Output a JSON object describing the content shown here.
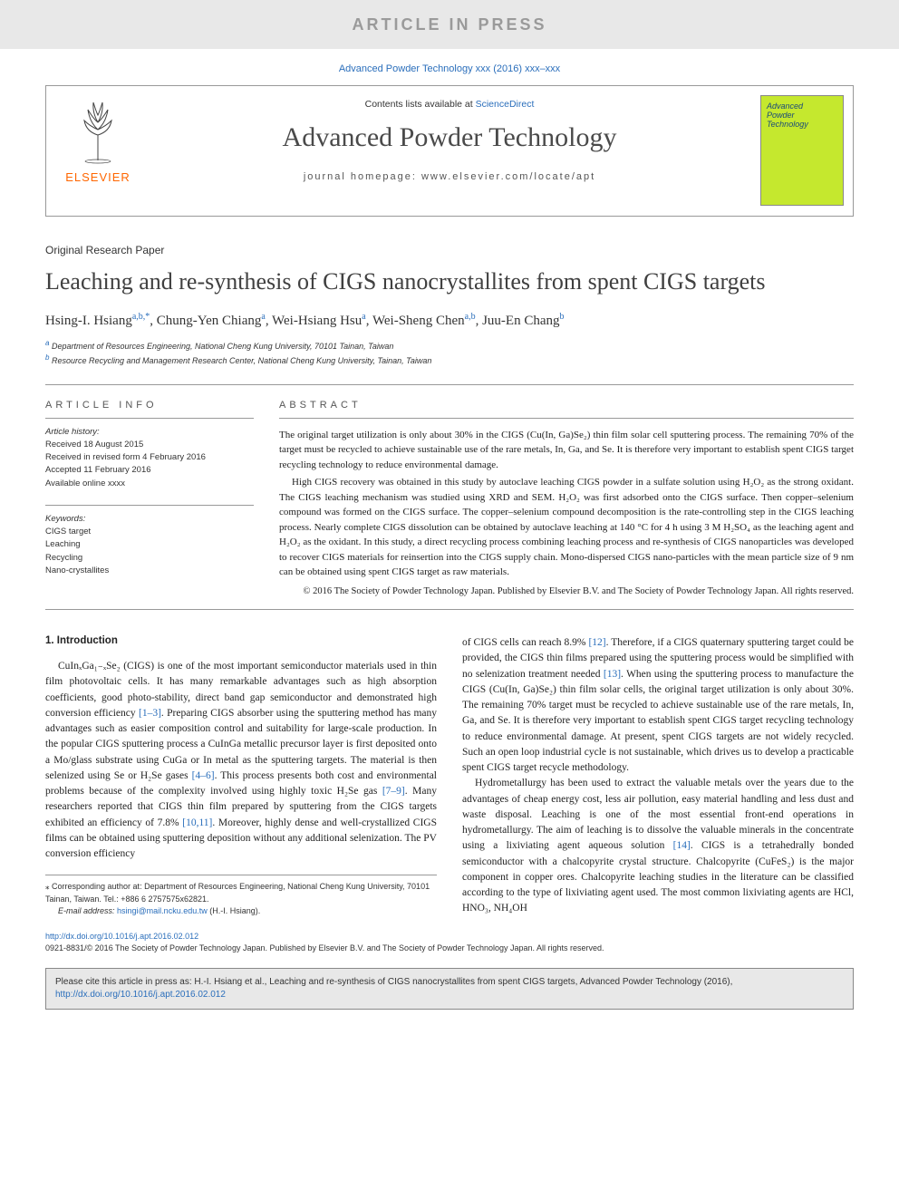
{
  "colors": {
    "press_banner_bg": "#e8e8e8",
    "press_banner_fg": "#9a9a9a",
    "link": "#2a6ebb",
    "elsevier_orange": "#ff6600",
    "cover_bg": "#c5e82e",
    "text": "#222222",
    "rule": "#999999"
  },
  "press_banner": "ARTICLE IN PRESS",
  "journal_ref": "Advanced Powder Technology xxx (2016) xxx–xxx",
  "contents_prefix": "Contents lists available at ",
  "contents_link": "ScienceDirect",
  "journal_title": "Advanced Powder Technology",
  "homepage_label": "journal homepage: www.elsevier.com/locate/apt",
  "elsevier": "ELSEVIER",
  "cover_lines": [
    "Advanced",
    "Powder",
    "Technology"
  ],
  "paper_type": "Original Research Paper",
  "title": "Leaching and re-synthesis of CIGS nanocrystallites from spent CIGS targets",
  "authors": [
    {
      "name": "Hsing-I. Hsiang",
      "aff": "a,b,",
      "star": true
    },
    {
      "name": "Chung-Yen Chiang",
      "aff": "a"
    },
    {
      "name": "Wei-Hsiang Hsu",
      "aff": "a"
    },
    {
      "name": "Wei-Sheng Chen",
      "aff": "a,b"
    },
    {
      "name": "Juu-En Chang",
      "aff": "b"
    }
  ],
  "affiliations": [
    {
      "tag": "a",
      "text": "Department of Resources Engineering, National Cheng Kung University, 70101 Tainan, Taiwan"
    },
    {
      "tag": "b",
      "text": "Resource Recycling and Management Research Center, National Cheng Kung University, Tainan, Taiwan"
    }
  ],
  "article_info_head": "ARTICLE INFO",
  "history_label": "Article history:",
  "history": [
    "Received 18 August 2015",
    "Received in revised form 4 February 2016",
    "Accepted 11 February 2016",
    "Available online xxxx"
  ],
  "keywords_label": "Keywords:",
  "keywords": [
    "CIGS target",
    "Leaching",
    "Recycling",
    "Nano-crystallites"
  ],
  "abstract_head": "ABSTRACT",
  "abstract": [
    "The original target utilization is only about 30% in the CIGS (Cu(In, Ga)Se₂) thin film solar cell sputtering process. The remaining 70% of the target must be recycled to achieve sustainable use of the rare metals, In, Ga, and Se. It is therefore very important to establish spent CIGS target recycling technology to reduce environmental damage.",
    "High CIGS recovery was obtained in this study by autoclave leaching CIGS powder in a sulfate solution using H₂O₂ as the strong oxidant. The CIGS leaching mechanism was studied using XRD and SEM. H₂O₂ was first adsorbed onto the CIGS surface. Then copper–selenium compound was formed on the CIGS surface. The copper–selenium compound decomposition is the rate-controlling step in the CIGS leaching process. Nearly complete CIGS dissolution can be obtained by autoclave leaching at 140 °C for 4 h using 3 M H₂SO₄ as the leaching agent and H₂O₂ as the oxidant. In this study, a direct recycling process combining leaching process and re-synthesis of CIGS nanoparticles was developed to recover CIGS materials for reinsertion into the CIGS supply chain. Mono-dispersed CIGS nano-particles with the mean particle size of 9 nm can be obtained using spent CIGS target as raw materials."
  ],
  "copyright": "© 2016 The Society of Powder Technology Japan. Published by Elsevier B.V. and The Society of Powder Technology Japan. All rights reserved.",
  "intro_head": "1. Introduction",
  "body_left": "CuInₓGa₁₋ₓSe₂ (CIGS) is one of the most important semiconductor materials used in thin film photovoltaic cells. It has many remarkable advantages such as high absorption coefficients, good photo-stability, direct band gap semiconductor and demonstrated high conversion efficiency [1–3]. Preparing CIGS absorber using the sputtering method has many advantages such as easier composition control and suitability for large-scale production. In the popular CIGS sputtering process a CuInGa metallic precursor layer is first deposited onto a Mo/glass substrate using CuGa or In metal as the sputtering targets. The material is then selenized using Se or H₂Se gases [4–6]. This process presents both cost and environmental problems because of the complexity involved using highly toxic H₂Se gas [7–9]. Many researchers reported that CIGS thin film prepared by sputtering from the CIGS targets exhibited an efficiency of 7.8% [10,11]. Moreover, highly dense and well-crystallized CIGS films can be obtained using sputtering deposition without any additional selenization. The PV conversion efficiency",
  "body_right_p1": "of CIGS cells can reach 8.9% [12]. Therefore, if a CIGS quaternary sputtering target could be provided, the CIGS thin films prepared using the sputtering process would be simplified with no selenization treatment needed [13]. When using the sputtering process to manufacture the CIGS (Cu(In, Ga)Se₂) thin film solar cells, the original target utilization is only about 30%. The remaining 70% target must be recycled to achieve sustainable use of the rare metals, In, Ga, and Se. It is therefore very important to establish spent CIGS target recycling technology to reduce environmental damage. At present, spent CIGS targets are not widely recycled. Such an open loop industrial cycle is not sustainable, which drives us to develop a practicable spent CIGS target recycle methodology.",
  "body_right_p2": "Hydrometallurgy has been used to extract the valuable metals over the years due to the advantages of cheap energy cost, less air pollution, easy material handling and less dust and waste disposal. Leaching is one of the most essential front-end operations in hydrometallurgy. The aim of leaching is to dissolve the valuable minerals in the concentrate using a lixiviating agent aqueous solution [14]. CIGS is a tetrahedrally bonded semiconductor with a chalcopyrite crystal structure. Chalcopyrite (CuFeS₂) is the major component in copper ores. Chalcopyrite leaching studies in the literature can be classified according to the type of lixiviating agent used. The most common lixiviating agents are HCl, HNO₃, NH₄OH",
  "corr_note": "⁎ Corresponding author at: Department of Resources Engineering, National Cheng Kung University, 70101 Tainan, Taiwan. Tel.: +886 6 2757575x62821.",
  "email_label": "E-mail address: ",
  "email": "hsingi@mail.ncku.edu.tw",
  "email_suffix": " (H.-I. Hsiang).",
  "doi": "http://dx.doi.org/10.1016/j.apt.2016.02.012",
  "issn": "0921-8831/© 2016 The Society of Powder Technology Japan. Published by Elsevier B.V. and The Society of Powder Technology Japan. All rights reserved.",
  "cite_prefix": "Please cite this article in press as: H.-I. Hsiang et al., Leaching and re-synthesis of CIGS nanocrystallites from spent CIGS targets, Advanced Powder Technology (2016), ",
  "cite_link": "http://dx.doi.org/10.1016/j.apt.2016.02.012",
  "ref_links": [
    "[1–3]",
    "[4–6]",
    "[7–9]",
    "[10,11]",
    "[12]",
    "[13]",
    "[14]"
  ]
}
